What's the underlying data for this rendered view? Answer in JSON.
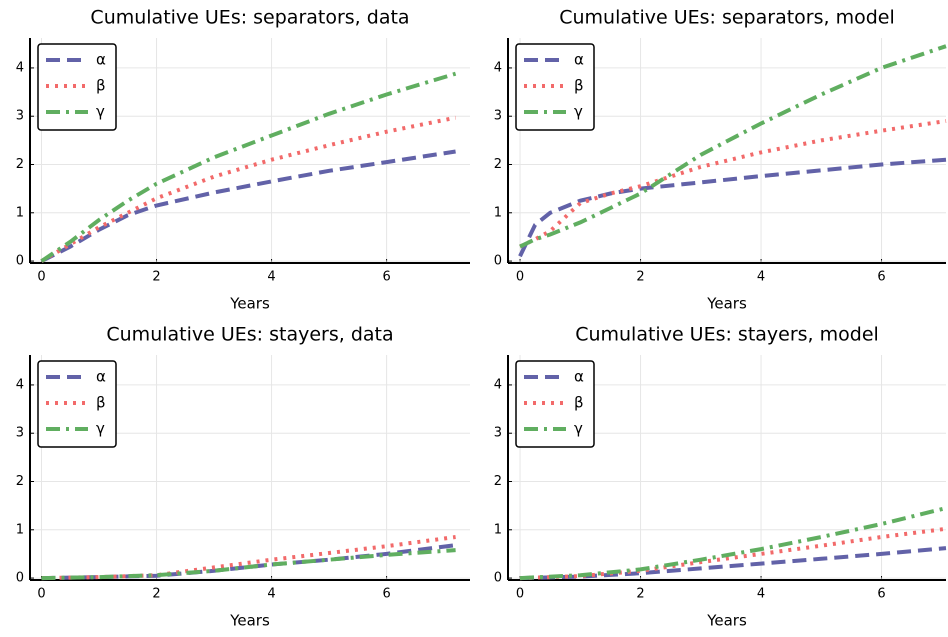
{
  "chart_data": [
    {
      "type": "line",
      "title": "Cumulative UEs: separators, data",
      "xlabel": "Years",
      "x": [
        0,
        0.5,
        1,
        1.5,
        2,
        3,
        4,
        5,
        6,
        7.2
      ],
      "series": [
        {
          "name": "α",
          "color": "#6262a8",
          "dash": "dash",
          "values": [
            0,
            0.3,
            0.65,
            0.95,
            1.15,
            1.42,
            1.65,
            1.87,
            2.05,
            2.27
          ]
        },
        {
          "name": "β",
          "color": "#f26a6a",
          "dash": "dot",
          "values": [
            0,
            0.35,
            0.7,
            1.0,
            1.3,
            1.75,
            2.1,
            2.4,
            2.68,
            2.97
          ]
        },
        {
          "name": "γ",
          "color": "#60ae60",
          "dash": "dashdot",
          "values": [
            0,
            0.4,
            0.85,
            1.25,
            1.6,
            2.15,
            2.6,
            3.05,
            3.45,
            3.88
          ]
        }
      ],
      "xlim": [
        -0.2,
        7.45
      ],
      "ylim": [
        -0.04,
        4.62
      ],
      "xticks": [
        0,
        2,
        4,
        6
      ],
      "yticks": [
        0,
        1,
        2,
        3,
        4
      ],
      "grid": true,
      "legend": "top-left"
    },
    {
      "type": "line",
      "title": "Cumulative UEs: separators, model",
      "xlabel": "Years",
      "x": [
        0,
        0.25,
        0.5,
        1,
        1.5,
        2,
        3,
        4,
        5,
        6,
        7.07
      ],
      "series": [
        {
          "name": "α",
          "color": "#6262a8",
          "dash": "dash",
          "values": [
            0.1,
            0.75,
            1.0,
            1.25,
            1.4,
            1.5,
            1.63,
            1.76,
            1.88,
            2.0,
            2.1
          ]
        },
        {
          "name": "β",
          "color": "#f26a6a",
          "dash": "dot",
          "values": [
            0.3,
            0.45,
            0.62,
            1.2,
            1.4,
            1.55,
            1.95,
            2.25,
            2.5,
            2.7,
            2.9
          ]
        },
        {
          "name": "γ",
          "color": "#60ae60",
          "dash": "dashdot",
          "values": [
            0.3,
            0.45,
            0.55,
            0.8,
            1.1,
            1.4,
            2.2,
            2.85,
            3.45,
            4.0,
            4.45
          ]
        }
      ],
      "xlim": [
        -0.2,
        7.07
      ],
      "ylim": [
        -0.04,
        4.62
      ],
      "xticks": [
        0,
        2,
        4,
        6
      ],
      "yticks": [
        0,
        1,
        2,
        3,
        4
      ],
      "grid": true,
      "legend": "top-left"
    },
    {
      "type": "line",
      "title": "Cumulative UEs: stayers, data",
      "xlabel": "Years",
      "x": [
        0,
        1,
        2,
        3,
        4,
        5,
        6,
        7.2
      ],
      "series": [
        {
          "name": "α",
          "color": "#6262a8",
          "dash": "dash",
          "values": [
            0,
            0.02,
            0.05,
            0.15,
            0.28,
            0.38,
            0.5,
            0.68
          ]
        },
        {
          "name": "β",
          "color": "#f26a6a",
          "dash": "dot",
          "values": [
            0,
            0.02,
            0.06,
            0.22,
            0.38,
            0.52,
            0.66,
            0.85
          ]
        },
        {
          "name": "γ",
          "color": "#60ae60",
          "dash": "dashdot",
          "values": [
            0,
            0.02,
            0.06,
            0.15,
            0.28,
            0.38,
            0.48,
            0.58
          ]
        }
      ],
      "xlim": [
        -0.2,
        7.45
      ],
      "ylim": [
        -0.04,
        4.62
      ],
      "xticks": [
        0,
        2,
        4,
        6
      ],
      "yticks": [
        0,
        1,
        2,
        3,
        4
      ],
      "grid": true,
      "legend": "top-left"
    },
    {
      "type": "line",
      "title": "Cumulative UEs: stayers, model",
      "xlabel": "Years",
      "x": [
        0,
        1,
        2,
        3,
        4,
        5,
        6,
        7.07
      ],
      "series": [
        {
          "name": "α",
          "color": "#6262a8",
          "dash": "dash",
          "values": [
            0,
            0.03,
            0.1,
            0.2,
            0.3,
            0.4,
            0.5,
            0.62
          ]
        },
        {
          "name": "β",
          "color": "#f26a6a",
          "dash": "dot",
          "values": [
            0,
            0.04,
            0.15,
            0.33,
            0.5,
            0.67,
            0.85,
            1.02
          ]
        },
        {
          "name": "γ",
          "color": "#60ae60",
          "dash": "dashdot",
          "values": [
            0,
            0.06,
            0.18,
            0.38,
            0.6,
            0.85,
            1.12,
            1.45
          ]
        }
      ],
      "xlim": [
        -0.2,
        7.07
      ],
      "ylim": [
        -0.04,
        4.62
      ],
      "xticks": [
        0,
        2,
        4,
        6
      ],
      "yticks": [
        0,
        1,
        2,
        3,
        4
      ],
      "grid": true,
      "legend": "top-left"
    }
  ]
}
